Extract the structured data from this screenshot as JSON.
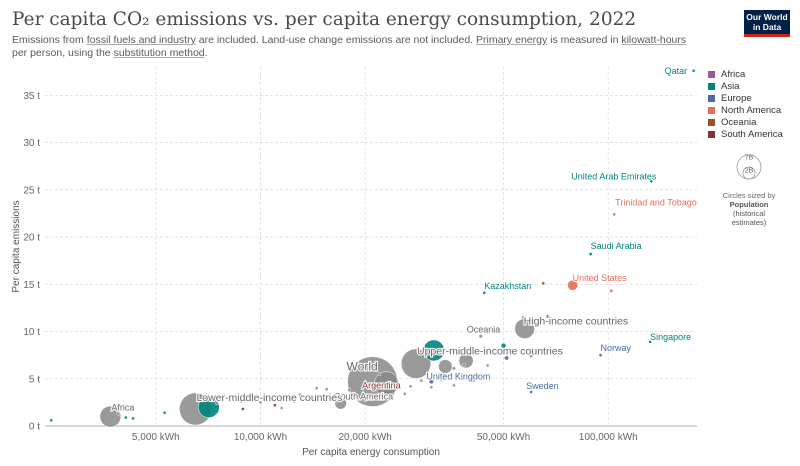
{
  "header": {
    "title": "Per capita CO₂ emissions vs. per capita energy consumption, 2022",
    "subtitle_parts": [
      "Emissions from ",
      "fossil fuels and industry",
      " are included. Land-use change emissions are not included. ",
      "Primary energy",
      " is measured in ",
      "kilowatt-hours",
      " per person, using the ",
      "substitution method",
      "."
    ],
    "logo_line1": "Our World",
    "logo_line2": "in Data"
  },
  "legend": [
    {
      "label": "Africa",
      "color": "#a2559c"
    },
    {
      "label": "Asia",
      "color": "#00847e"
    },
    {
      "label": "Europe",
      "color": "#4c6a9c"
    },
    {
      "label": "North America",
      "color": "#e56e5a"
    },
    {
      "label": "Oceania",
      "color": "#9a5129"
    },
    {
      "label": "South America",
      "color": "#883039"
    }
  ],
  "size_key": {
    "big": "7B",
    "small": "2B",
    "caption": "Circles sized by",
    "caption_bold": "Population",
    "caption_rest": "(historical estimates)"
  },
  "chart_data": {
    "type": "scatter",
    "title": "Per capita CO₂ emissions vs. per capita energy consumption, 2022",
    "xlabel": "Per capita energy consumption",
    "ylabel": "Per capita emissions",
    "x_scale": "log",
    "xlim": [
      2400,
      180000
    ],
    "ylim": [
      0,
      38
    ],
    "x_ticks": [
      {
        "value": 5000,
        "label": "5,000 kWh"
      },
      {
        "value": 10000,
        "label": "10,000 kWh"
      },
      {
        "value": 20000,
        "label": "20,000 kWh"
      },
      {
        "value": 50000,
        "label": "50,000 kWh"
      },
      {
        "value": 100000,
        "label": "100,000 kWh"
      }
    ],
    "y_ticks": [
      {
        "value": 0,
        "label": "0 t"
      },
      {
        "value": 5,
        "label": "5 t"
      },
      {
        "value": 10,
        "label": "10 t"
      },
      {
        "value": 15,
        "label": "15 t"
      },
      {
        "value": 20,
        "label": "20 t"
      },
      {
        "value": 25,
        "label": "25 t"
      },
      {
        "value": 30,
        "label": "30 t"
      },
      {
        "value": 35,
        "label": "35 t"
      }
    ],
    "grid": true,
    "legend_position": "right",
    "points": [
      {
        "label": "Qatar",
        "x": 176000,
        "y": 37.6,
        "pop": 2.7,
        "color": "#00847e",
        "show_label": true
      },
      {
        "label": "United Arab Emirates",
        "x": 133000,
        "y": 25.9,
        "pop": 9.4,
        "color": "#00847e",
        "show_label": true
      },
      {
        "label": "Trinidad and Tobago",
        "x": 104000,
        "y": 22.4,
        "pop": 1.5,
        "color": "#e56e5a",
        "show_label": true
      },
      {
        "label": "Saudi Arabia",
        "x": 89000,
        "y": 18.2,
        "pop": 36.4,
        "color": "#00847e",
        "show_label": true
      },
      {
        "label": "United States",
        "x": 79000,
        "y": 14.9,
        "pop": 333,
        "color": "#e56e5a",
        "show_label": true
      },
      {
        "label": "Kazakhstan",
        "x": 44000,
        "y": 14.1,
        "pop": 19.6,
        "color": "#00847e",
        "show_label": true
      },
      {
        "label": "Singapore",
        "x": 132000,
        "y": 8.9,
        "pop": 5.6,
        "color": "#00847e",
        "show_label": true
      },
      {
        "label": "Norway",
        "x": 95000,
        "y": 7.5,
        "pop": 5.5,
        "color": "#4c6a9c",
        "show_label": true
      },
      {
        "label": "High-income countries",
        "x": 57500,
        "y": 10.3,
        "pop": 1250,
        "color": "#888888",
        "show_label": true
      },
      {
        "label": "Oceania",
        "x": 43000,
        "y": 9.5,
        "pop": 45,
        "color": "#888888",
        "show_label": true
      },
      {
        "label": "Upper-middle-income countries",
        "x": 28000,
        "y": 6.6,
        "pop": 2800,
        "color": "#888888",
        "show_label": true
      },
      {
        "label": "World",
        "x": 21000,
        "y": 4.7,
        "pop": 7950,
        "color": "#888888",
        "show_label": true
      },
      {
        "label": "Argentina",
        "x": 21500,
        "y": 4.1,
        "pop": 46,
        "color": "#883039",
        "show_label": true
      },
      {
        "label": "United Kingdom",
        "x": 31000,
        "y": 4.7,
        "pop": 67,
        "color": "#4c6a9c",
        "show_label": true
      },
      {
        "label": "Sweden",
        "x": 60000,
        "y": 3.6,
        "pop": 10.5,
        "color": "#4c6a9c",
        "show_label": true
      },
      {
        "label": "South America",
        "x": 17000,
        "y": 2.4,
        "pop": 435,
        "color": "#888888",
        "show_label": true
      },
      {
        "label": "Lower-middle-income countries",
        "x": 6500,
        "y": 1.8,
        "pop": 3300,
        "color": "#888888",
        "show_label": true
      },
      {
        "label": "Africa",
        "x": 3700,
        "y": 1.0,
        "pop": 1400,
        "color": "#888888",
        "show_label": true
      },
      {
        "label": "",
        "x": 7100,
        "y": 2.0,
        "pop": 1417,
        "color": "#00847e",
        "show_label": false
      },
      {
        "label": "",
        "x": 31500,
        "y": 8.0,
        "pop": 1412,
        "color": "#00847e",
        "show_label": false
      },
      {
        "label": "",
        "x": 23000,
        "y": 4.5,
        "pop": 1800,
        "color": "#888888",
        "show_label": false
      },
      {
        "label": "",
        "x": 39000,
        "y": 6.9,
        "pop": 660,
        "color": "#888888",
        "show_label": false
      },
      {
        "label": "",
        "x": 34000,
        "y": 6.3,
        "pop": 600,
        "color": "#888888",
        "show_label": false
      },
      {
        "label": "",
        "x": 57000,
        "y": 11.5,
        "pop": 40,
        "color": "#888888",
        "show_label": false
      },
      {
        "label": "",
        "x": 50000,
        "y": 8.5,
        "pop": 80,
        "color": "#00847e",
        "show_label": false
      },
      {
        "label": "",
        "x": 51000,
        "y": 7.2,
        "pop": 60,
        "color": "#4c6a9c",
        "show_label": false
      },
      {
        "label": "",
        "x": 67000,
        "y": 11.6,
        "pop": 10,
        "color": "#00847e",
        "show_label": false
      },
      {
        "label": "",
        "x": 65000,
        "y": 15.1,
        "pop": 5,
        "color": "#9a5129",
        "show_label": false
      },
      {
        "label": "",
        "x": 102000,
        "y": 14.3,
        "pop": 38,
        "color": "#e56e5a",
        "show_label": false
      },
      {
        "label": "",
        "x": 45000,
        "y": 9.9,
        "pop": 25,
        "color": "#9a5129",
        "show_label": false
      },
      {
        "label": "",
        "x": 60000,
        "y": 11.3,
        "pop": 5,
        "color": "#888888",
        "show_label": false
      },
      {
        "label": "",
        "x": 36000,
        "y": 6.1,
        "pop": 40,
        "color": "#888888",
        "show_label": false
      },
      {
        "label": "",
        "x": 38000,
        "y": 5.2,
        "pop": 45,
        "color": "#888888",
        "show_label": false
      },
      {
        "label": "",
        "x": 38500,
        "y": 6.5,
        "pop": 25,
        "color": "#888888",
        "show_label": false
      },
      {
        "label": "",
        "x": 45000,
        "y": 6.4,
        "pop": 20,
        "color": "#888888",
        "show_label": false
      },
      {
        "label": "",
        "x": 60000,
        "y": 7.4,
        "pop": 15,
        "color": "#888888",
        "show_label": false
      },
      {
        "label": "",
        "x": 33000,
        "y": 4.9,
        "pop": 35,
        "color": "#888888",
        "show_label": false
      },
      {
        "label": "",
        "x": 29000,
        "y": 4.8,
        "pop": 25,
        "color": "#888888",
        "show_label": false
      },
      {
        "label": "",
        "x": 27000,
        "y": 4.2,
        "pop": 20,
        "color": "#888888",
        "show_label": false
      },
      {
        "label": "",
        "x": 36000,
        "y": 4.3,
        "pop": 20,
        "color": "#888888",
        "show_label": false
      },
      {
        "label": "",
        "x": 26000,
        "y": 3.4,
        "pop": 20,
        "color": "#888888",
        "show_label": false
      },
      {
        "label": "",
        "x": 16500,
        "y": 2.6,
        "pop": 20,
        "color": "#888888",
        "show_label": false
      },
      {
        "label": "",
        "x": 17000,
        "y": 3.1,
        "pop": 15,
        "color": "#888888",
        "show_label": false
      },
      {
        "label": "",
        "x": 18000,
        "y": 3.8,
        "pop": 15,
        "color": "#888888",
        "show_label": false
      },
      {
        "label": "",
        "x": 13000,
        "y": 3.3,
        "pop": 15,
        "color": "#888888",
        "show_label": false
      },
      {
        "label": "",
        "x": 14500,
        "y": 4.0,
        "pop": 15,
        "color": "#888888",
        "show_label": false
      },
      {
        "label": "",
        "x": 12500,
        "y": 2.6,
        "pop": 15,
        "color": "#888888",
        "show_label": false
      },
      {
        "label": "",
        "x": 15500,
        "y": 3.9,
        "pop": 15,
        "color": "#888888",
        "show_label": false
      },
      {
        "label": "",
        "x": 11000,
        "y": 2.2,
        "pop": 15,
        "color": "#883039",
        "show_label": false
      },
      {
        "label": "",
        "x": 8900,
        "y": 1.8,
        "pop": 15,
        "color": "#883039",
        "show_label": false
      },
      {
        "label": "",
        "x": 8800,
        "y": 2.6,
        "pop": 15,
        "color": "#888888",
        "show_label": false
      },
      {
        "label": "",
        "x": 11500,
        "y": 1.9,
        "pop": 15,
        "color": "#888888",
        "show_label": false
      },
      {
        "label": "",
        "x": 10000,
        "y": 2.5,
        "pop": 20,
        "color": "#888888",
        "show_label": false
      },
      {
        "label": "",
        "x": 7500,
        "y": 2.4,
        "pop": 15,
        "color": "#888888",
        "show_label": false
      },
      {
        "label": "",
        "x": 4100,
        "y": 0.9,
        "pop": 20,
        "color": "#00847e",
        "show_label": false
      },
      {
        "label": "",
        "x": 4300,
        "y": 0.8,
        "pop": 15,
        "color": "#00847e",
        "show_label": false
      },
      {
        "label": "",
        "x": 5300,
        "y": 1.4,
        "pop": 15,
        "color": "#00847e",
        "show_label": false
      },
      {
        "label": "",
        "x": 2500,
        "y": 0.6,
        "pop": 15,
        "color": "#00847e",
        "show_label": false
      },
      {
        "label": "",
        "x": 3900,
        "y": 1.3,
        "pop": 15,
        "color": "#888888",
        "show_label": false
      },
      {
        "label": "",
        "x": 20000,
        "y": 2.7,
        "pop": 15,
        "color": "#888888",
        "show_label": false
      },
      {
        "label": "",
        "x": 22000,
        "y": 5.5,
        "pop": 15,
        "color": "#888888",
        "show_label": false
      },
      {
        "label": "",
        "x": 31000,
        "y": 4.1,
        "pop": 15,
        "color": "#888888",
        "show_label": false
      },
      {
        "label": "",
        "x": 41000,
        "y": 4.8,
        "pop": 15,
        "color": "#888888",
        "show_label": false
      }
    ]
  }
}
